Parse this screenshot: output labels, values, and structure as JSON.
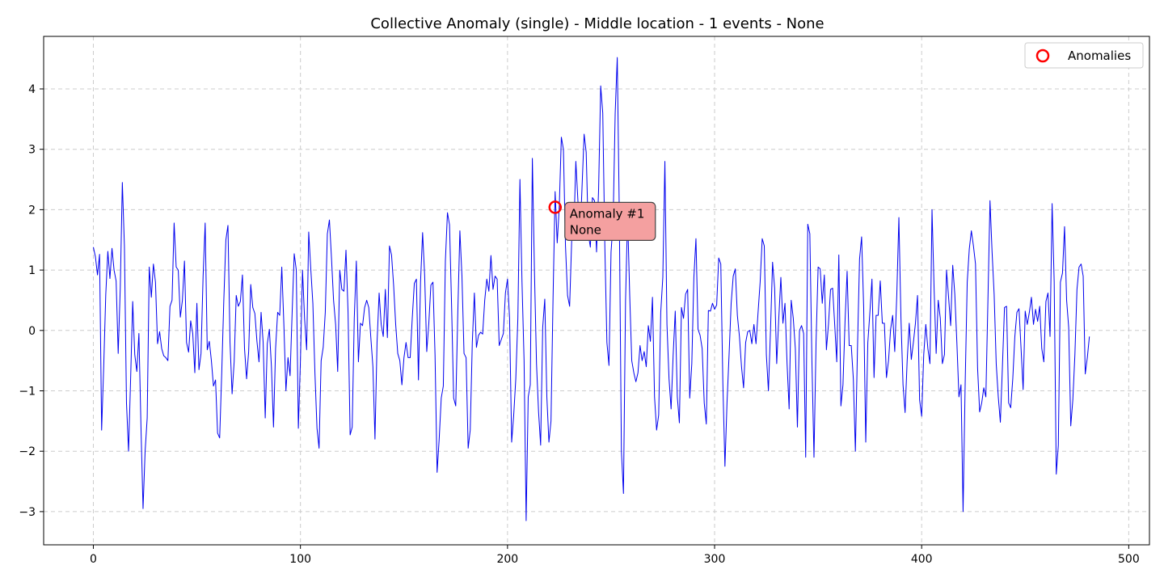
{
  "chart_data": {
    "type": "line",
    "title": "Collective Anomaly (single) - Middle location - 1 events - None",
    "xlabel": "",
    "ylabel": "",
    "xlim": [
      -24,
      510
    ],
    "ylim": [
      -3.55,
      4.87
    ],
    "xticks": [
      0,
      100,
      200,
      300,
      400,
      500
    ],
    "yticks": [
      -3,
      -2,
      -1,
      0,
      1,
      2,
      3,
      4
    ],
    "grid": true,
    "legend": {
      "placement": "top-right",
      "entries": [
        "Anomalies"
      ]
    },
    "series": [
      {
        "color": "#0000ee",
        "values": [
          1.38,
          1.22,
          0.92,
          1.26,
          -1.65,
          -0.6,
          0.6,
          1.31,
          0.86,
          1.36,
          1.0,
          0.82,
          -0.38,
          0.7,
          2.45,
          1.4,
          -1.2,
          -2.0,
          -0.8,
          0.48,
          -0.4,
          -0.68,
          -0.05,
          -1.6,
          -2.95,
          -2.0,
          -1.45,
          1.05,
          0.55,
          1.1,
          0.8,
          -0.22,
          -0.02,
          -0.3,
          -0.42,
          -0.45,
          -0.5,
          0.4,
          0.5,
          1.78,
          1.05,
          1.0,
          0.22,
          0.5,
          1.15,
          -0.2,
          -0.36,
          0.16,
          -0.05,
          -0.7,
          0.45,
          -0.65,
          -0.38,
          0.9,
          1.78,
          -0.32,
          -0.18,
          -0.5,
          -0.92,
          -0.82,
          -1.7,
          -1.78,
          -0.7,
          0.5,
          1.5,
          1.74,
          -0.2,
          -1.05,
          -0.52,
          0.58,
          0.4,
          0.48,
          0.92,
          -0.3,
          -0.8,
          -0.35,
          0.76,
          0.38,
          0.28,
          -0.18,
          -0.52,
          0.3,
          -0.2,
          -1.45,
          -0.22,
          0.02,
          -0.6,
          -1.6,
          -0.3,
          0.3,
          0.25,
          1.05,
          0.1,
          -1.0,
          -0.45,
          -0.75,
          0.3,
          1.27,
          1.0,
          -1.62,
          -0.5,
          1.0,
          0.2,
          -0.32,
          1.63,
          1.02,
          0.45,
          -0.7,
          -1.62,
          -1.95,
          -0.5,
          -0.28,
          0.3,
          1.6,
          1.83,
          1.2,
          0.5,
          0.1,
          -0.68,
          1.0,
          0.68,
          0.65,
          1.33,
          0.3,
          -1.73,
          -1.6,
          0.2,
          1.15,
          -0.52,
          0.12,
          0.08,
          0.38,
          0.5,
          0.38,
          -0.12,
          -0.6,
          -1.8,
          -0.2,
          0.62,
          0.1,
          -0.1,
          0.68,
          -0.12,
          1.4,
          1.25,
          0.75,
          0.1,
          -0.38,
          -0.5,
          -0.9,
          -0.45,
          -0.2,
          -0.45,
          -0.45,
          0.2,
          0.78,
          0.85,
          -0.82,
          0.8,
          1.62,
          0.9,
          -0.35,
          0.12,
          0.75,
          0.8,
          -0.4,
          -2.35,
          -1.8,
          -1.12,
          -0.92,
          1.15,
          1.95,
          1.75,
          0.4,
          -1.12,
          -1.25,
          0.3,
          1.65,
          0.9,
          -0.38,
          -0.45,
          -1.95,
          -1.65,
          -0.2,
          0.62,
          -0.28,
          -0.08,
          -0.03,
          -0.06,
          0.5,
          0.85,
          0.65,
          1.24,
          0.68,
          0.9,
          0.85,
          -0.25,
          -0.15,
          -0.05,
          0.62,
          0.85,
          0.2,
          -1.85,
          -1.4,
          -0.8,
          0.2,
          2.5,
          0.8,
          -0.5,
          -3.15,
          -1.1,
          -0.9,
          2.85,
          1.0,
          -0.55,
          -1.35,
          -1.9,
          0.05,
          0.52,
          -1.1,
          -1.85,
          -1.5,
          0.55,
          2.3,
          1.45,
          2.05,
          3.2,
          3.0,
          1.4,
          0.58,
          0.4,
          1.5,
          1.62,
          2.8,
          2.15,
          1.5,
          2.38,
          3.25,
          2.95,
          1.6,
          1.38,
          2.2,
          2.15,
          1.3,
          2.35,
          4.05,
          3.6,
          1.4,
          -0.2,
          -0.58,
          1.3,
          1.8,
          3.6,
          4.52,
          1.9,
          -2.0,
          -2.7,
          0.5,
          1.9,
          0.6,
          -0.5,
          -0.7,
          -0.85,
          -0.7,
          -0.25,
          -0.5,
          -0.35,
          -0.6,
          0.08,
          -0.18,
          0.55,
          -1.1,
          -1.65,
          -1.4,
          0.3,
          0.88,
          2.8,
          0.1,
          -0.8,
          -1.3,
          -0.4,
          0.32,
          -1.1,
          -1.53,
          0.38,
          0.2,
          0.6,
          0.68,
          -1.12,
          -0.55,
          0.88,
          1.52,
          0.02,
          -0.08,
          -0.3,
          -1.2,
          -1.55,
          0.33,
          0.32,
          0.45,
          0.35,
          0.42,
          1.2,
          1.1,
          -0.88,
          -2.25,
          -1.2,
          -0.4,
          0.45,
          0.9,
          1.02,
          0.25,
          -0.1,
          -0.6,
          -0.95,
          -0.2,
          -0.02,
          0.0,
          -0.22,
          0.1,
          -0.22,
          0.3,
          0.8,
          1.52,
          1.4,
          -0.4,
          -1.0,
          0.0,
          1.13,
          0.7,
          -0.55,
          0.2,
          0.88,
          0.12,
          0.45,
          -0.55,
          -1.3,
          0.5,
          0.2,
          -0.3,
          -1.6,
          0.0,
          0.08,
          -0.05,
          -2.1,
          1.76,
          1.6,
          -0.5,
          -2.1,
          -0.2,
          1.05,
          1.02,
          0.45,
          0.92,
          -0.32,
          0.1,
          0.68,
          0.7,
          0.1,
          -0.52,
          1.25,
          -1.25,
          -0.9,
          0.15,
          0.98,
          -0.25,
          -0.25,
          -0.8,
          -2.0,
          -0.3,
          1.18,
          1.55,
          0.38,
          -1.85,
          -0.2,
          0.3,
          0.85,
          -0.78,
          0.25,
          0.25,
          0.82,
          0.12,
          0.12,
          -0.78,
          -0.5,
          0.02,
          0.25,
          -0.35,
          0.6,
          1.87,
          0.2,
          -0.9,
          -1.36,
          -0.5,
          0.12,
          -0.48,
          -0.2,
          0.12,
          0.58,
          -1.15,
          -1.42,
          -0.4,
          0.1,
          -0.3,
          -0.55,
          2.0,
          0.7,
          -0.38,
          0.5,
          0.2,
          -0.55,
          -0.4,
          1.0,
          0.55,
          0.08,
          1.08,
          0.6,
          -0.2,
          -1.1,
          -0.9,
          -3.0,
          -0.9,
          0.8,
          1.35,
          1.65,
          1.4,
          1.1,
          -0.62,
          -1.35,
          -1.2,
          -0.95,
          -1.1,
          0.5,
          2.15,
          1.3,
          0.6,
          -0.55,
          -1.1,
          -1.52,
          -0.6,
          0.38,
          0.4,
          -1.2,
          -1.28,
          -0.8,
          -0.1,
          0.3,
          0.36,
          -0.3,
          -0.98,
          0.32,
          0.1,
          0.3,
          0.55,
          0.1,
          0.35,
          0.15,
          0.4,
          -0.3,
          -0.52,
          0.48,
          0.62,
          -0.1,
          2.1,
          0.8,
          -2.38,
          -1.9,
          0.8,
          0.95,
          1.72,
          0.5,
          0.05,
          -1.58,
          -1.15,
          -0.4,
          0.68,
          1.05,
          1.1,
          0.9,
          -0.72,
          -0.45,
          -0.1
        ]
      }
    ],
    "anomalies": [
      {
        "x": 223,
        "y": 2.04
      }
    ],
    "annotation": {
      "line1": "Anomaly #1",
      "line2": "None"
    }
  }
}
